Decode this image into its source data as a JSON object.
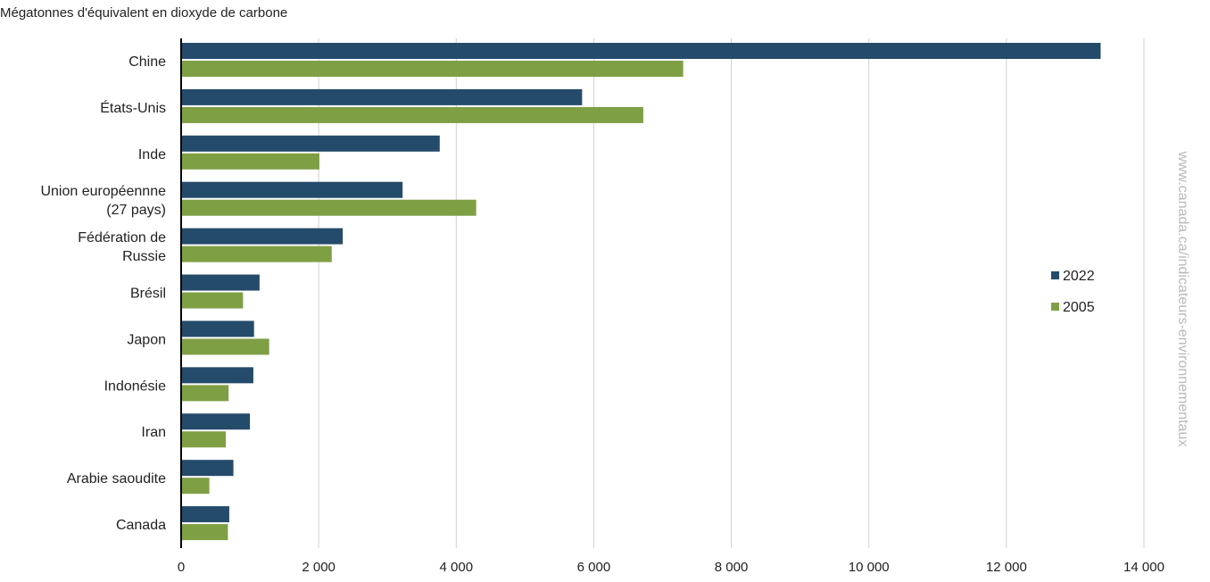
{
  "chart_data": {
    "type": "bar",
    "orientation": "horizontal",
    "ylabel": "Mégatonnes d'équivalent en dioxyde de carbone",
    "categories": [
      [
        "Chine"
      ],
      [
        "États-Unis"
      ],
      [
        "Inde"
      ],
      [
        "Union européennne",
        "(27 pays)"
      ],
      [
        "Fédération de",
        "Russie"
      ],
      [
        "Brésil"
      ],
      [
        "Japon"
      ],
      [
        "Indonésie"
      ],
      [
        "Iran"
      ],
      [
        "Arabie saoudite"
      ],
      [
        "Canada"
      ]
    ],
    "series": [
      {
        "name": "2022",
        "color": "#254b6b",
        "values": [
          13370,
          5830,
          3760,
          3220,
          2350,
          1140,
          1060,
          1050,
          1000,
          760,
          700
        ]
      },
      {
        "name": "2005",
        "color": "#7f9f45",
        "values": [
          7300,
          6720,
          2010,
          4290,
          2190,
          900,
          1280,
          690,
          650,
          410,
          680
        ]
      }
    ],
    "xlim": [
      0,
      14000
    ],
    "xticks": [
      "0",
      "2 000",
      "4 000",
      "6 000",
      "8 000",
      "10 000",
      "12 000",
      "14 000"
    ],
    "grid": true,
    "legend_position": "right"
  },
  "watermark": "www.canada.ca/indicateurs-environnementaux"
}
